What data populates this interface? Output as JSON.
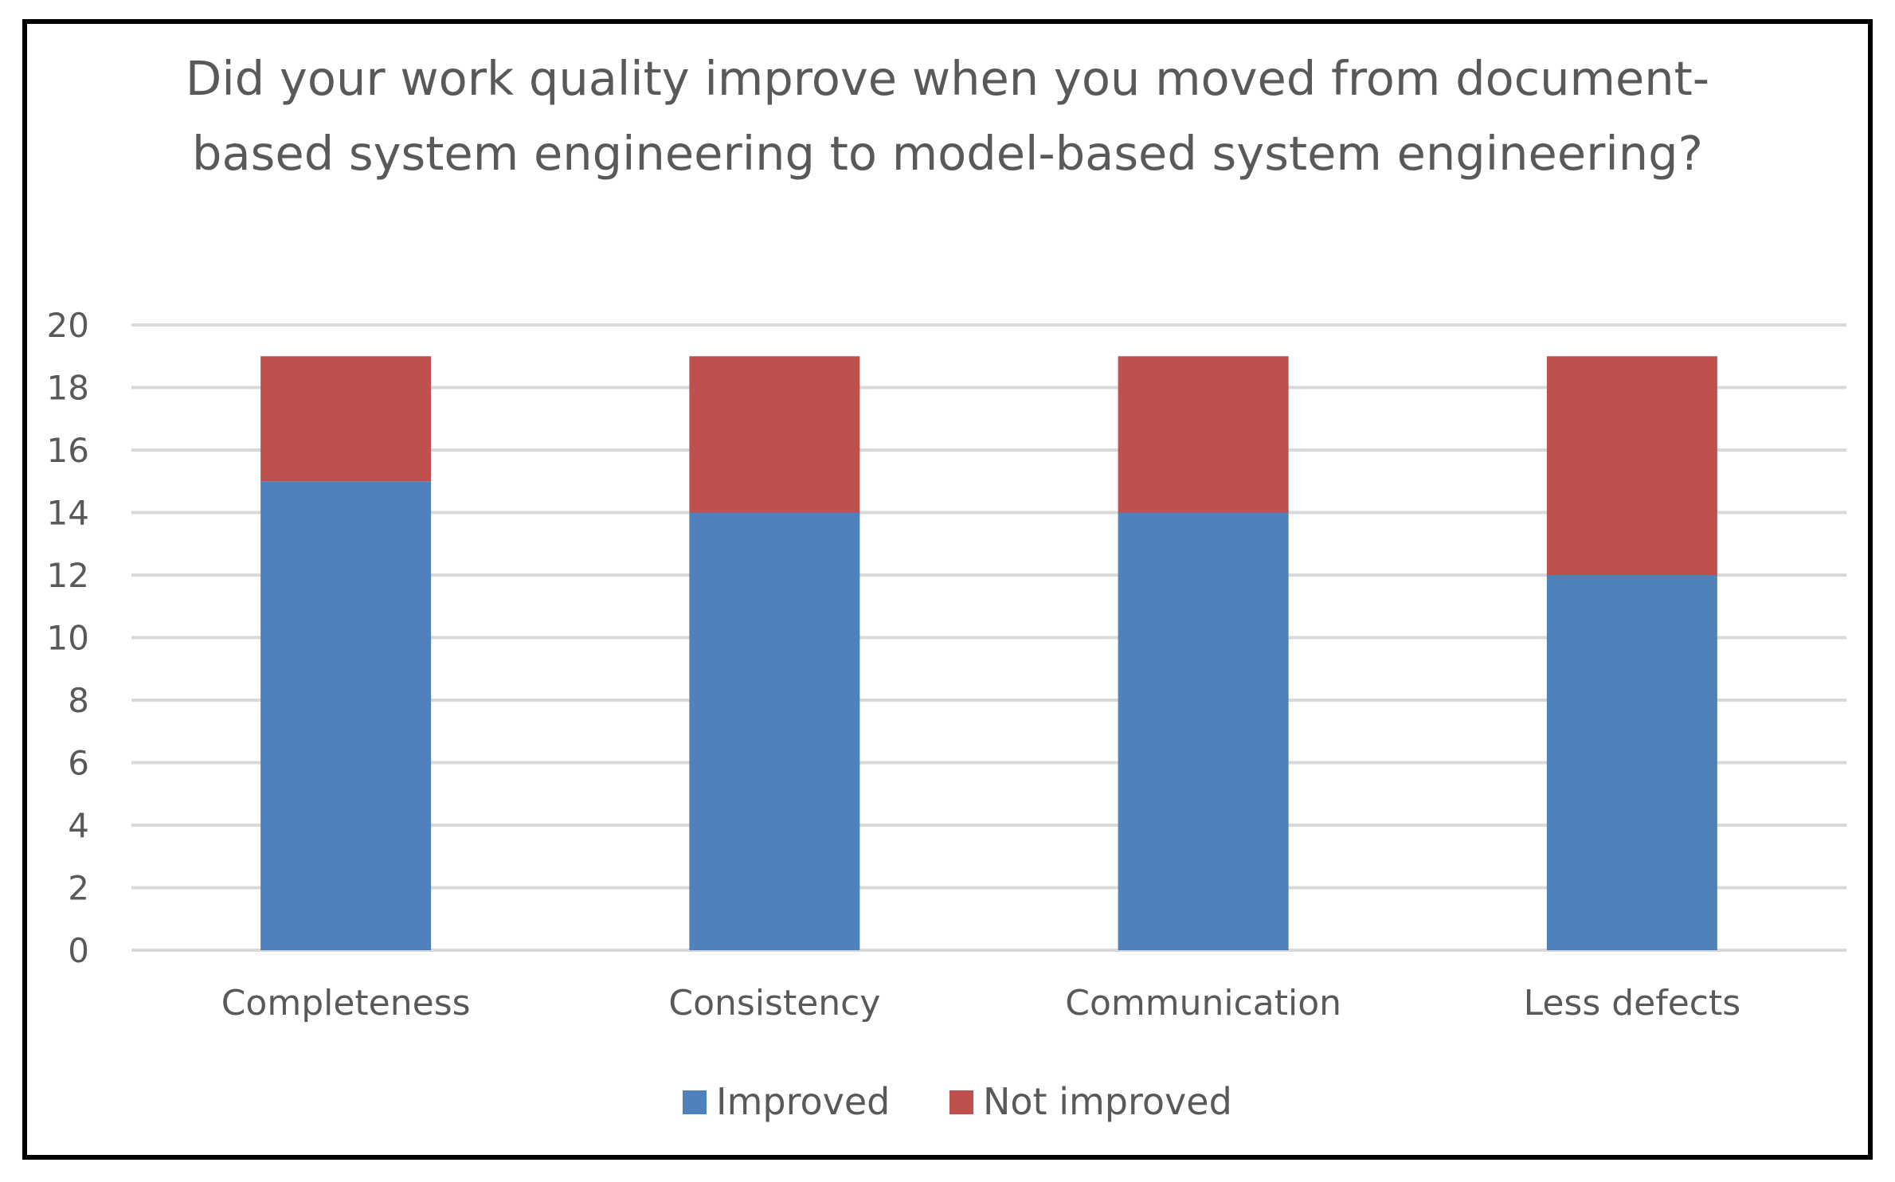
{
  "chart_data": {
    "type": "bar",
    "stacked": true,
    "title": "Did your work quality improve when you moved from document-based system engineering to model-based system engineering?",
    "categories": [
      "Completeness",
      "Consistency",
      "Communication",
      "Less defects"
    ],
    "series": [
      {
        "name": "Improved",
        "values": [
          15,
          14,
          14,
          12
        ],
        "color": "#4f81bd"
      },
      {
        "name": "Not improved",
        "values": [
          4,
          5,
          5,
          7
        ],
        "color": "#c0504d"
      }
    ],
    "ylim": [
      0,
      20
    ],
    "yticks": [
      0,
      2,
      4,
      6,
      8,
      10,
      12,
      14,
      16,
      18,
      20
    ],
    "grid": true,
    "legend": "bottom",
    "colors": {
      "grid": "#d9d9d9",
      "text": "#595959"
    }
  }
}
